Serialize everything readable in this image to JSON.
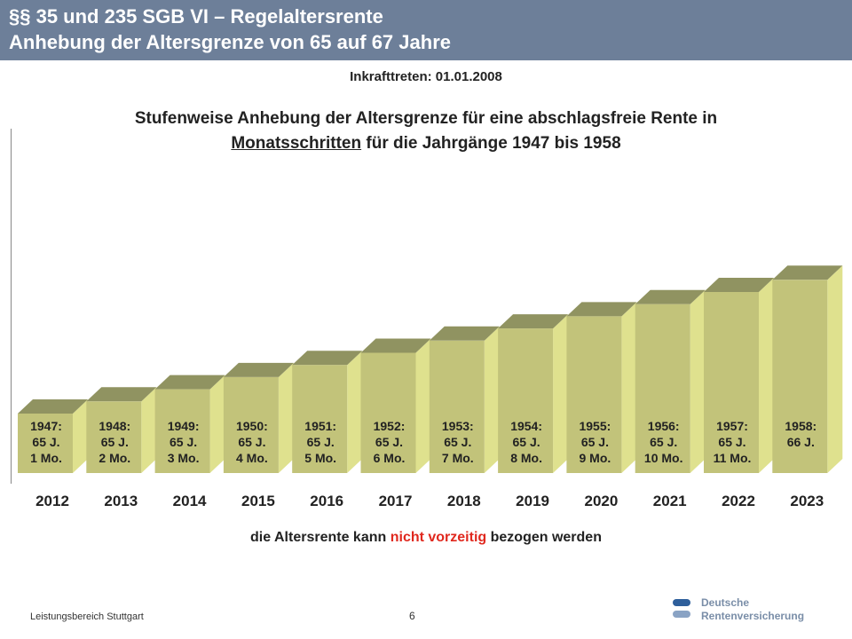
{
  "header": {
    "line1": "§§ 35 und 235 SGB VI – Regelaltersrente",
    "line2": "Anhebung der Altersgrenze von 65 auf 67 Jahre"
  },
  "effective_date": "Inkrafttreten: 01.01.2008",
  "heading": {
    "part1": "Stufenweise Anhebung der Altersgrenze für eine abschlagsfreie Rente in",
    "underlined": "Monatsschritten",
    "part2": " für die Jahrgänge 1947 bis 1958"
  },
  "note": {
    "before": "die Altersrente kann ",
    "highlight": "nicht vorzeitig",
    "after": " bezogen werden"
  },
  "footer": {
    "label": "Leistungsbereich Stuttgart",
    "page": "6"
  },
  "logo": {
    "word1": "Deutsche",
    "word2": "Rentenversicherung"
  },
  "colors": {
    "header_bg": "#6d7f99",
    "bar_front": "#c2c37a",
    "bar_top": "#909361",
    "bar_side": "#dfe18e",
    "highlight": "#e0281e"
  },
  "chart_data": {
    "type": "bar",
    "title": "Stufenweise Anhebung der Altersgrenze für eine abschlagsfreie Rente in Monatsschritten für die Jahrgänge 1947 bis 1958",
    "categories": [
      "2012",
      "2013",
      "2014",
      "2015",
      "2016",
      "2017",
      "2018",
      "2019",
      "2020",
      "2021",
      "2022",
      "2023"
    ],
    "values": [
      1,
      2,
      3,
      4,
      5,
      6,
      7,
      8,
      9,
      10,
      11,
      12
    ],
    "value_unit": "months above age 65",
    "bar_labels": [
      [
        "1947:",
        "65 J.",
        "1 Mo."
      ],
      [
        "1948:",
        "65 J.",
        "2 Mo."
      ],
      [
        "1949:",
        "65 J.",
        "3 Mo."
      ],
      [
        "1950:",
        "65 J.",
        "4 Mo."
      ],
      [
        "1951:",
        "65 J.",
        "5 Mo."
      ],
      [
        "1952:",
        "65 J.",
        "6 Mo."
      ],
      [
        "1953:",
        "65 J.",
        "7 Mo."
      ],
      [
        "1954:",
        "65 J.",
        "8 Mo."
      ],
      [
        "1955:",
        "65 J.",
        "9 Mo."
      ],
      [
        "1956:",
        "65 J.",
        "10 Mo."
      ],
      [
        "1957:",
        "65 J.",
        "11 Mo."
      ],
      [
        "1958:",
        "66 J."
      ]
    ],
    "xlabel": "",
    "ylabel": "",
    "grid": false,
    "legend": "none",
    "style": "3d"
  }
}
